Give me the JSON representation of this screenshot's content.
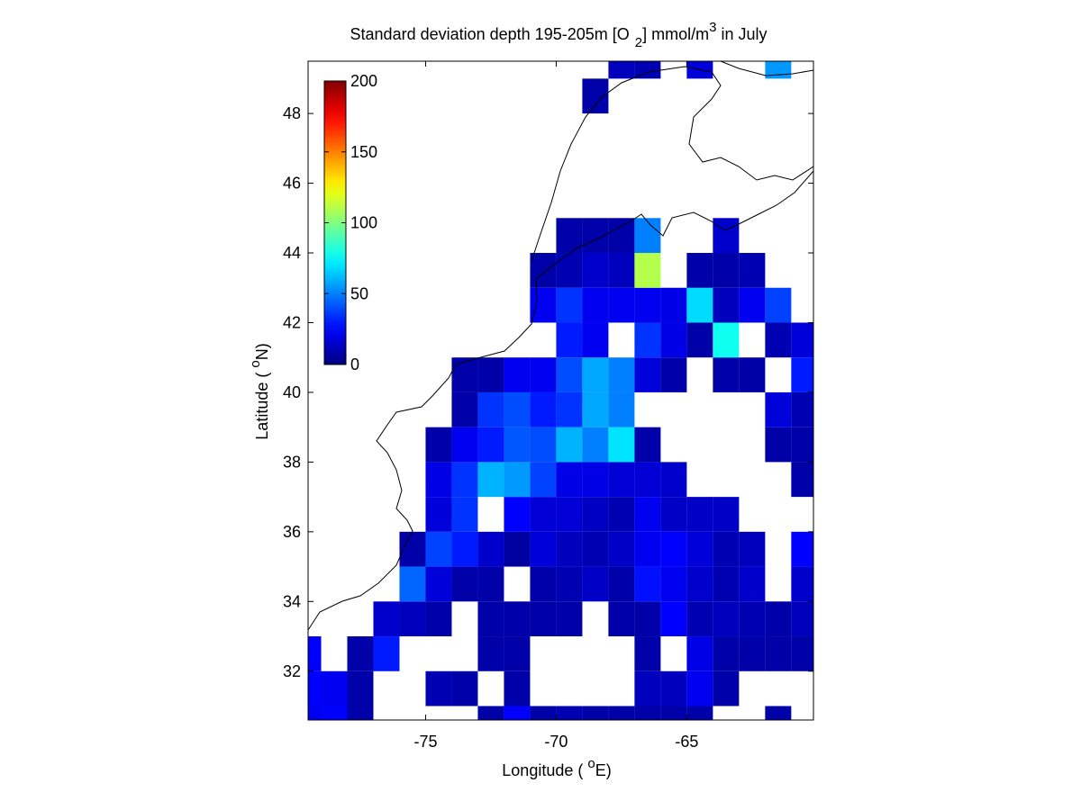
{
  "chart_data": {
    "type": "heatmap",
    "title": [
      "Standard deviation depth 195-205m [O",
      "2",
      "] mmol/m",
      "3",
      " in July"
    ],
    "xlabel": [
      "Longitude ( ",
      "o",
      "E)"
    ],
    "ylabel": [
      "Latitude ( ",
      "o",
      "N)"
    ],
    "xlim": [
      -79.5,
      -60.15
    ],
    "ylim": [
      30.6,
      49.5
    ],
    "xticks": [
      -75,
      -70,
      -65
    ],
    "yticks": [
      32,
      34,
      36,
      38,
      40,
      42,
      44,
      46,
      48
    ],
    "clim": [
      0,
      200
    ],
    "cticks": [
      0,
      50,
      100,
      150,
      200
    ],
    "colormap": "jet",
    "x": [
      -79.5,
      -78.5,
      -77.5,
      -76.5,
      -75.5,
      -74.5,
      -73.5,
      -72.5,
      -71.5,
      -70.5,
      -69.5,
      -68.5,
      -67.5,
      -66.5,
      -65.5,
      -64.5,
      -63.5,
      -62.5,
      -61.5,
      -60.5
    ],
    "y": [
      30.5,
      31.5,
      32.5,
      33.5,
      34.5,
      35.5,
      36.5,
      37.5,
      38.5,
      39.5,
      40.5,
      41.5,
      42.5,
      43.5,
      44.5,
      45.5,
      46.5,
      47.5,
      48.5,
      49.5
    ],
    "z": [
      [
        22,
        25,
        8,
        null,
        null,
        null,
        null,
        8,
        25,
        8,
        10,
        8,
        8,
        8,
        8,
        8,
        null,
        null,
        8,
        null
      ],
      [
        25,
        22,
        8,
        null,
        null,
        10,
        8,
        null,
        8,
        null,
        null,
        null,
        null,
        12,
        12,
        22,
        8,
        null,
        null,
        null
      ],
      [
        25,
        null,
        8,
        30,
        null,
        null,
        null,
        8,
        8,
        null,
        null,
        null,
        null,
        8,
        null,
        20,
        8,
        8,
        8,
        8
      ],
      [
        null,
        null,
        null,
        15,
        12,
        8,
        null,
        8,
        8,
        8,
        8,
        null,
        8,
        8,
        25,
        10,
        12,
        10,
        8,
        12
      ],
      [
        null,
        null,
        null,
        null,
        45,
        18,
        8,
        8,
        null,
        8,
        10,
        14,
        8,
        28,
        22,
        15,
        10,
        15,
        null,
        15
      ],
      [
        null,
        null,
        null,
        null,
        8,
        38,
        30,
        15,
        6,
        18,
        12,
        10,
        14,
        22,
        25,
        18,
        10,
        12,
        null,
        25
      ],
      [
        null,
        null,
        null,
        null,
        null,
        18,
        35,
        null,
        25,
        17,
        17,
        13,
        10,
        22,
        14,
        14,
        14,
        null,
        null,
        null
      ],
      [
        null,
        null,
        null,
        null,
        null,
        20,
        35,
        60,
        55,
        38,
        20,
        20,
        17,
        17,
        15,
        null,
        null,
        null,
        null,
        8
      ],
      [
        null,
        null,
        null,
        null,
        null,
        8,
        22,
        30,
        42,
        40,
        60,
        50,
        70,
        8,
        null,
        null,
        null,
        null,
        8,
        8
      ],
      [
        null,
        null,
        null,
        null,
        null,
        null,
        8,
        35,
        40,
        30,
        35,
        58,
        50,
        null,
        null,
        null,
        null,
        null,
        18,
        10
      ],
      [
        null,
        null,
        null,
        null,
        null,
        null,
        8,
        8,
        22,
        22,
        40,
        58,
        50,
        18,
        8,
        null,
        8,
        8,
        null,
        30
      ],
      [
        null,
        null,
        null,
        null,
        null,
        null,
        null,
        null,
        null,
        null,
        30,
        22,
        null,
        35,
        20,
        8,
        78,
        null,
        10,
        18
      ],
      [
        null,
        null,
        null,
        null,
        null,
        null,
        null,
        null,
        null,
        22,
        35,
        22,
        22,
        22,
        20,
        68,
        12,
        22,
        38,
        null
      ],
      [
        null,
        null,
        null,
        null,
        null,
        null,
        null,
        null,
        null,
        8,
        10,
        15,
        12,
        110,
        null,
        8,
        8,
        10,
        null,
        null
      ],
      [
        null,
        null,
        null,
        null,
        null,
        null,
        null,
        null,
        null,
        null,
        8,
        8,
        8,
        50,
        null,
        null,
        15,
        null,
        null,
        null
      ],
      [
        null,
        null,
        null,
        null,
        null,
        null,
        null,
        null,
        null,
        null,
        null,
        null,
        null,
        null,
        null,
        null,
        null,
        null,
        null,
        null
      ],
      [
        null,
        null,
        null,
        null,
        null,
        null,
        null,
        null,
        null,
        null,
        null,
        null,
        null,
        null,
        null,
        null,
        null,
        null,
        null,
        null
      ],
      [
        null,
        null,
        null,
        null,
        null,
        null,
        null,
        null,
        null,
        null,
        null,
        null,
        null,
        null,
        null,
        null,
        null,
        null,
        null,
        null
      ],
      [
        null,
        null,
        null,
        null,
        null,
        null,
        null,
        null,
        null,
        null,
        null,
        8,
        null,
        null,
        null,
        null,
        null,
        null,
        null,
        null
      ],
      [
        null,
        null,
        null,
        null,
        null,
        null,
        null,
        null,
        null,
        null,
        null,
        null,
        12,
        10,
        null,
        18,
        null,
        null,
        55,
        null
      ]
    ]
  }
}
